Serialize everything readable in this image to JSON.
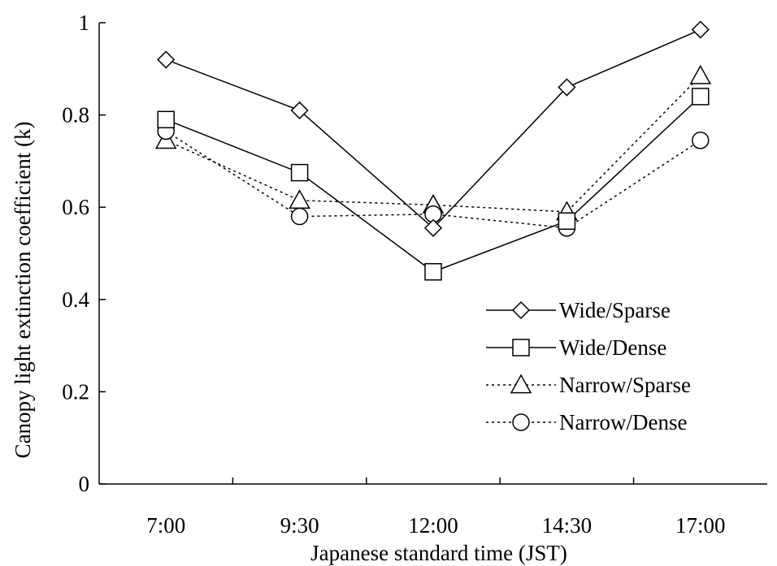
{
  "chart_data": {
    "type": "line",
    "categories": [
      "7:00",
      "9:30",
      "12:00",
      "14:30",
      "17:00"
    ],
    "xlabel": "Japanese standard time (JST)",
    "ylabel": "Canopy light extinction coefficient (k)",
    "ylim": [
      0,
      1
    ],
    "yticks": [
      0,
      0.2,
      0.4,
      0.6,
      0.8,
      1
    ],
    "ytick_labels": [
      "0",
      "0.2",
      "0.4",
      "0.6",
      "0.8",
      "1"
    ],
    "grid": false,
    "legend_position": "bottom-right",
    "series": [
      {
        "name": "Wide/Sparse",
        "marker": "diamond",
        "line": "solid",
        "values": [
          0.92,
          0.81,
          0.555,
          0.86,
          0.985
        ]
      },
      {
        "name": "Wide/Dense",
        "marker": "square",
        "line": "solid",
        "values": [
          0.79,
          0.675,
          0.46,
          0.57,
          0.84
        ]
      },
      {
        "name": "Narrow/Sparse",
        "marker": "triangle",
        "line": "dotted",
        "values": [
          0.745,
          0.615,
          0.605,
          0.59,
          0.885
        ]
      },
      {
        "name": "Narrow/Dense",
        "marker": "circle",
        "line": "dotted",
        "values": [
          0.765,
          0.58,
          0.585,
          0.555,
          0.745
        ]
      }
    ]
  }
}
